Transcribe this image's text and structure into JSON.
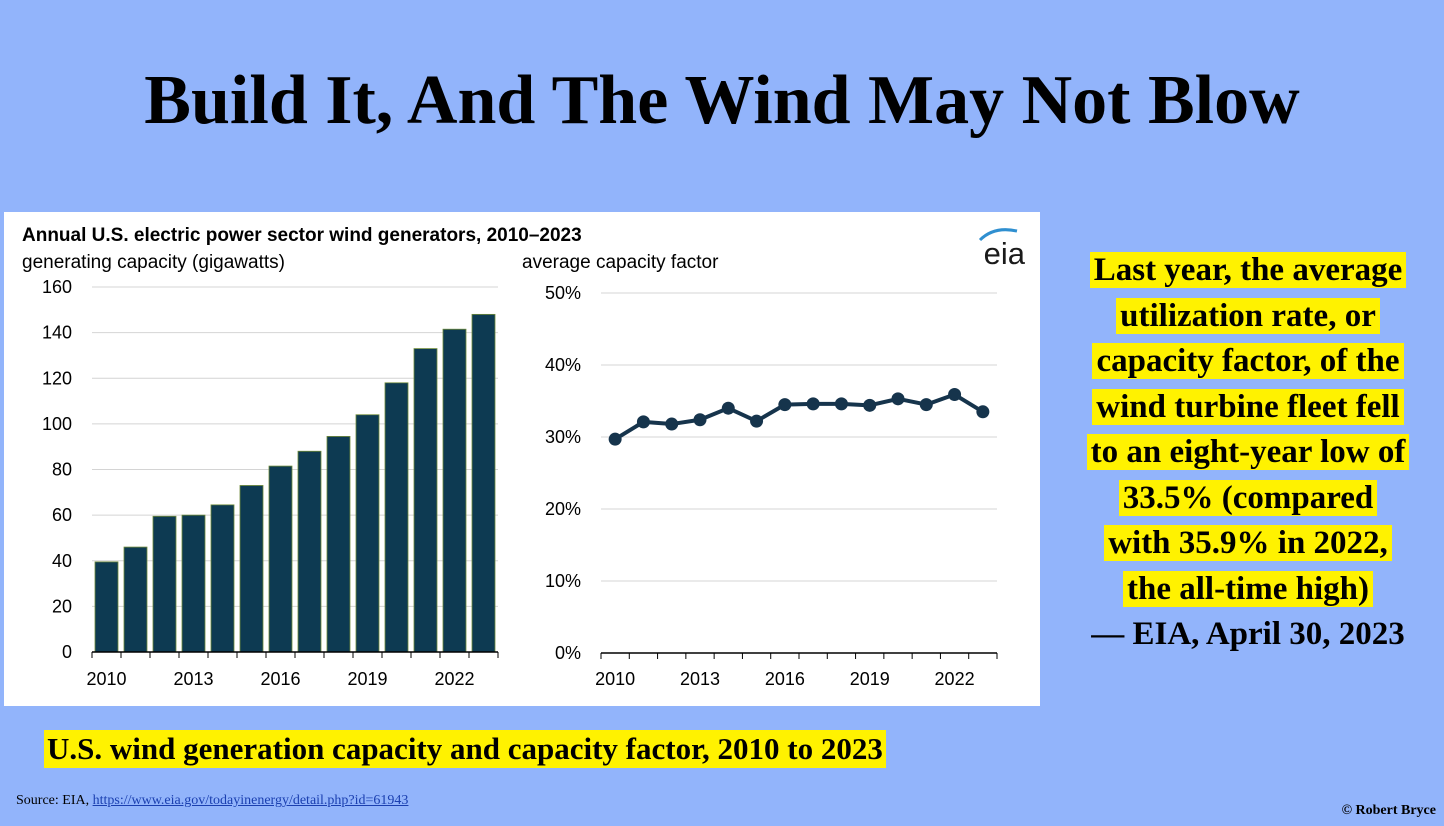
{
  "title": "Build It, And The Wind May Not Blow",
  "chart_title": "Annual U.S. electric power sector wind generators, 2010–2023",
  "logo_text": "eia",
  "chart_data": [
    {
      "type": "bar",
      "ylabel": "generating capacity (gigawatts)",
      "ylim": [
        0,
        160
      ],
      "yticks": [
        "0",
        "20",
        "40",
        "60",
        "80",
        "100",
        "120",
        "140",
        "160"
      ],
      "xticks": [
        "2010",
        "2013",
        "2016",
        "2019",
        "2022"
      ],
      "categories": [
        2010,
        2011,
        2012,
        2013,
        2014,
        2015,
        2016,
        2017,
        2018,
        2019,
        2020,
        2021,
        2022,
        2023
      ],
      "values": [
        39.5,
        46,
        59.5,
        60,
        64.5,
        73,
        81.5,
        88,
        94.5,
        104,
        118,
        133,
        141.5,
        148
      ],
      "grid": true,
      "color": "#0d3a52"
    },
    {
      "type": "line",
      "ylabel": "average capacity factor",
      "ylim": [
        0,
        50
      ],
      "yticks": [
        "0%",
        "10%",
        "20%",
        "30%",
        "40%",
        "50%"
      ],
      "xticks": [
        "2010",
        "2013",
        "2016",
        "2019",
        "2022"
      ],
      "x": [
        2010,
        2011,
        2012,
        2013,
        2014,
        2015,
        2016,
        2017,
        2018,
        2019,
        2020,
        2021,
        2022,
        2023
      ],
      "values": [
        29.7,
        32.1,
        31.8,
        32.4,
        34.0,
        32.2,
        34.5,
        34.6,
        34.6,
        34.4,
        35.3,
        34.5,
        35.9,
        33.5
      ],
      "grid": true,
      "color": "#16344c"
    }
  ],
  "quote_lines": [
    "Last year, the average",
    "utilization rate, or",
    "capacity factor, of the",
    "wind turbine fleet fell",
    "to an eight-year low of",
    "33.5% (compared",
    "with 35.9% in 2022,",
    "the all-time high)"
  ],
  "quote_attribution": "— EIA, April 30, 2023",
  "caption": "U.S. wind generation capacity and capacity factor, 2010 to 2023",
  "source_prefix": "Source: EIA, ",
  "source_link": "https://www.eia.gov/todayinenergy/detail.php?id=61943",
  "copyright": "© Robert Bryce",
  "colors": {
    "background": "#92b4fb",
    "highlight": "#fff200",
    "bar": "#0d3a52",
    "line": "#16344c"
  }
}
